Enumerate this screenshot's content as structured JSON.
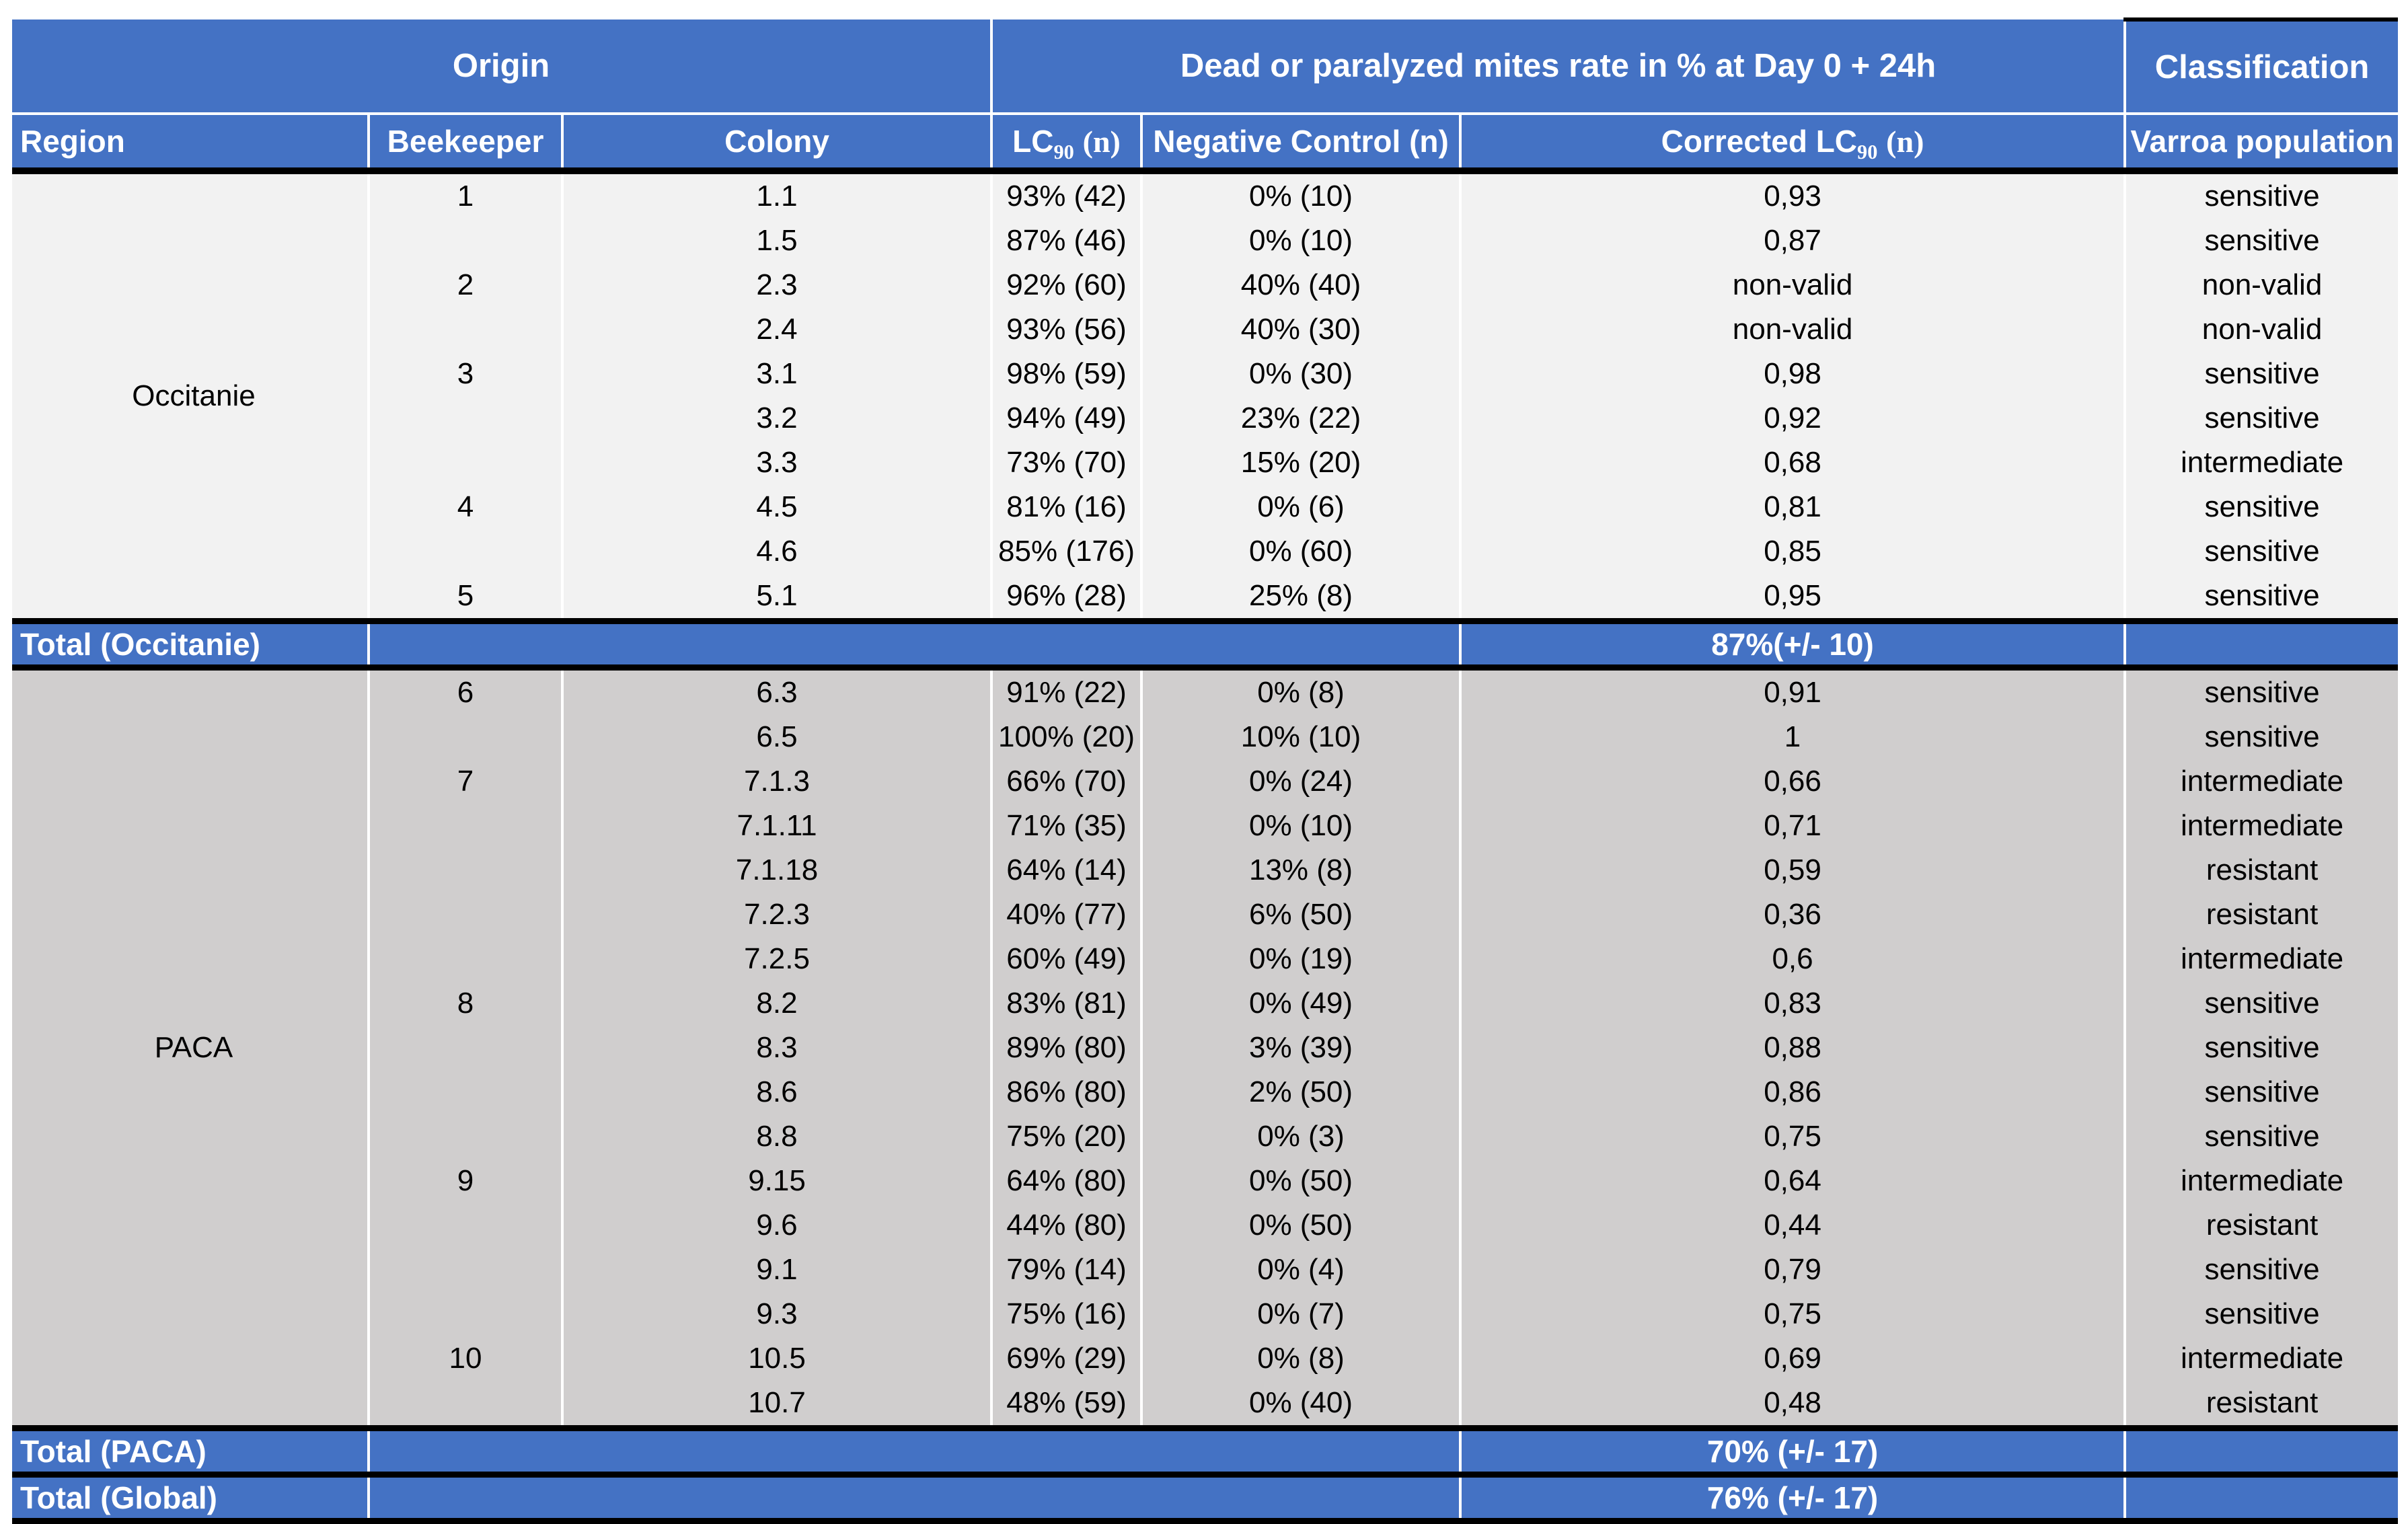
{
  "colors": {
    "header_blue": "#4472C4",
    "occitanie_row_bg": "#F2F2F2",
    "paca_row_bg": "#D0CECE"
  },
  "table": {
    "top_headers": {
      "origin": "Origin",
      "mites_rate": "Dead or paralyzed mites rate in % at Day 0 + 24h",
      "classification": "Classification"
    },
    "columns": {
      "region": "Region",
      "beekeeper": "Beekeeper",
      "colony": "Colony",
      "lc90_pre": "LC",
      "lc90_sub": "90",
      "lc90_post": "(n)",
      "negative_control": "Negative Control (n)",
      "corrected_pre": "Corrected LC",
      "corrected_sub": "90",
      "corrected_post": "(n)",
      "varroa": "Varroa population"
    },
    "sections": [
      {
        "region": "Occitanie",
        "row_bg": "#F2F2F2",
        "rows": [
          {
            "beekeeper": "1",
            "colony": "1.1",
            "lc90": "93% (42)",
            "negative_control": "0% (10)",
            "corrected": "0,93",
            "classification": "sensitive"
          },
          {
            "beekeeper": "",
            "colony": "1.5",
            "lc90": "87% (46)",
            "negative_control": "0% (10)",
            "corrected": "0,87",
            "classification": "sensitive"
          },
          {
            "beekeeper": "2",
            "colony": "2.3",
            "lc90": "92% (60)",
            "negative_control": "40% (40)",
            "corrected": "non-valid",
            "classification": "non-valid"
          },
          {
            "beekeeper": "",
            "colony": "2.4",
            "lc90": "93% (56)",
            "negative_control": "40% (30)",
            "corrected": "non-valid",
            "classification": "non-valid"
          },
          {
            "beekeeper": "3",
            "colony": "3.1",
            "lc90": "98% (59)",
            "negative_control": "0% (30)",
            "corrected": "0,98",
            "classification": "sensitive"
          },
          {
            "beekeeper": "",
            "colony": "3.2",
            "lc90": "94% (49)",
            "negative_control": "23% (22)",
            "corrected": "0,92",
            "classification": "sensitive"
          },
          {
            "beekeeper": "",
            "colony": "3.3",
            "lc90": "73% (70)",
            "negative_control": "15% (20)",
            "corrected": "0,68",
            "classification": "intermediate"
          },
          {
            "beekeeper": "4",
            "colony": "4.5",
            "lc90": "81% (16)",
            "negative_control": "0% (6)",
            "corrected": "0,81",
            "classification": "sensitive"
          },
          {
            "beekeeper": "",
            "colony": "4.6",
            "lc90": "85% (176)",
            "negative_control": "0% (60)",
            "corrected": "0,85",
            "classification": "sensitive"
          },
          {
            "beekeeper": "5",
            "colony": "5.1",
            "lc90": "96% (28)",
            "negative_control": "25% (8)",
            "corrected": "0,95",
            "classification": "sensitive"
          }
        ],
        "total": {
          "label": "Total (Occitanie)",
          "value": "87%(+/- 10)"
        }
      },
      {
        "region": "PACA",
        "row_bg": "#D0CECE",
        "rows": [
          {
            "beekeeper": "6",
            "colony": "6.3",
            "lc90": "91% (22)",
            "negative_control": "0% (8)",
            "corrected": "0,91",
            "classification": "sensitive"
          },
          {
            "beekeeper": "",
            "colony": "6.5",
            "lc90": "100% (20)",
            "negative_control": "10% (10)",
            "corrected": "1",
            "classification": "sensitive"
          },
          {
            "beekeeper": "7",
            "colony": "7.1.3",
            "lc90": "66% (70)",
            "negative_control": "0% (24)",
            "corrected": "0,66",
            "classification": "intermediate"
          },
          {
            "beekeeper": "",
            "colony": "7.1.11",
            "lc90": "71% (35)",
            "negative_control": "0% (10)",
            "corrected": "0,71",
            "classification": "intermediate"
          },
          {
            "beekeeper": "",
            "colony": "7.1.18",
            "lc90": "64% (14)",
            "negative_control": "13% (8)",
            "corrected": "0,59",
            "classification": "resistant"
          },
          {
            "beekeeper": "",
            "colony": "7.2.3",
            "lc90": "40% (77)",
            "negative_control": "6% (50)",
            "corrected": "0,36",
            "classification": "resistant"
          },
          {
            "beekeeper": "",
            "colony": "7.2.5",
            "lc90": "60% (49)",
            "negative_control": "0% (19)",
            "corrected": "0,6",
            "classification": "intermediate"
          },
          {
            "beekeeper": "8",
            "colony": "8.2",
            "lc90": "83% (81)",
            "negative_control": "0% (49)",
            "corrected": "0,83",
            "classification": "sensitive"
          },
          {
            "beekeeper": "",
            "colony": "8.3",
            "lc90": "89% (80)",
            "negative_control": "3% (39)",
            "corrected": "0,88",
            "classification": "sensitive"
          },
          {
            "beekeeper": "",
            "colony": "8.6",
            "lc90": "86% (80)",
            "negative_control": "2% (50)",
            "corrected": "0,86",
            "classification": "sensitive"
          },
          {
            "beekeeper": "",
            "colony": "8.8",
            "lc90": "75% (20)",
            "negative_control": "0% (3)",
            "corrected": "0,75",
            "classification": "sensitive"
          },
          {
            "beekeeper": "9",
            "colony": "9.15",
            "lc90": "64% (80)",
            "negative_control": "0% (50)",
            "corrected": "0,64",
            "classification": "intermediate"
          },
          {
            "beekeeper": "",
            "colony": "9.6",
            "lc90": "44% (80)",
            "negative_control": "0% (50)",
            "corrected": "0,44",
            "classification": "resistant"
          },
          {
            "beekeeper": "",
            "colony": "9.1",
            "lc90": "79% (14)",
            "negative_control": "0% (4)",
            "corrected": "0,79",
            "classification": "sensitive"
          },
          {
            "beekeeper": "",
            "colony": "9.3",
            "lc90": "75% (16)",
            "negative_control": "0% (7)",
            "corrected": "0,75",
            "classification": "sensitive"
          },
          {
            "beekeeper": "10",
            "colony": "10.5",
            "lc90": "69% (29)",
            "negative_control": "0% (8)",
            "corrected": "0,69",
            "classification": "intermediate"
          },
          {
            "beekeeper": "",
            "colony": "10.7",
            "lc90": "48% (59)",
            "negative_control": "0% (40)",
            "corrected": "0,48",
            "classification": "resistant"
          }
        ],
        "total": {
          "label": "Total (PACA)",
          "value": "70% (+/- 17)"
        }
      }
    ],
    "global_total": {
      "label": "Total (Global)",
      "value": "76% (+/- 17)"
    }
  }
}
